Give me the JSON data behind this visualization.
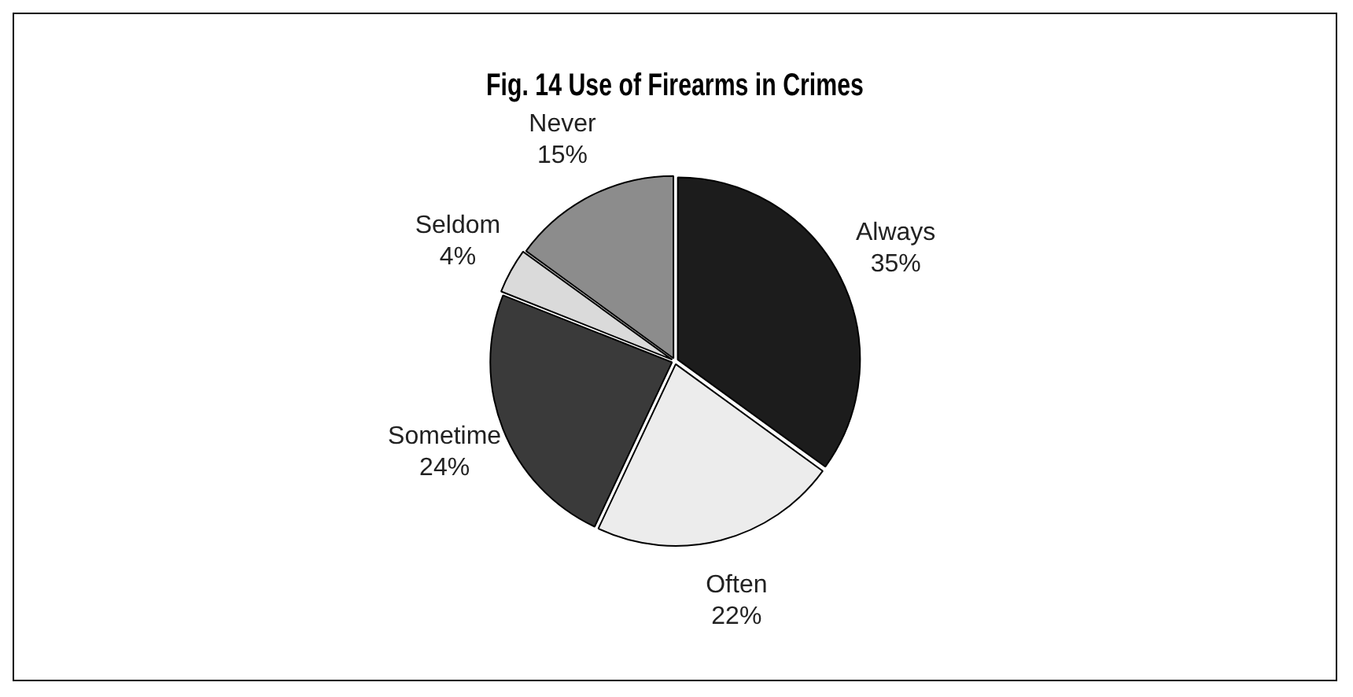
{
  "chart_data": {
    "type": "pie",
    "title": "Fig. 14 Use of Firearms in Crimes",
    "categories": [
      "Always",
      "Often",
      "Sometime",
      "Seldom",
      "Never"
    ],
    "values": [
      35,
      22,
      24,
      4,
      15
    ],
    "value_labels": [
      "35%",
      "22%",
      "24%",
      "4%",
      "15%"
    ],
    "colors": [
      "#1c1c1c",
      "#ececec",
      "#3a3a3a",
      "#dadada",
      "#8c8c8c"
    ],
    "legend": false
  }
}
